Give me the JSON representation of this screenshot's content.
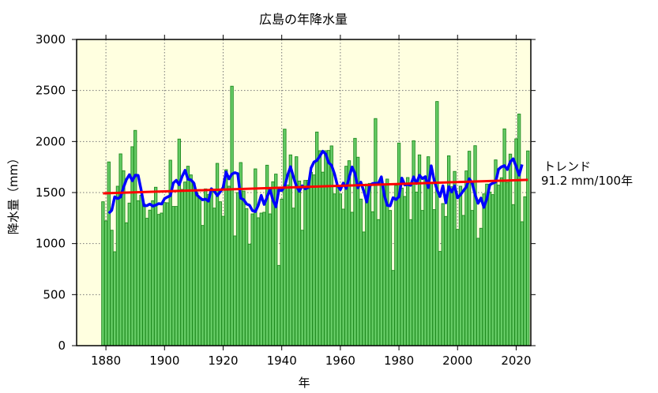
{
  "chart_data": {
    "type": "bar",
    "title": "広島の年降水量",
    "xlabel": "年",
    "ylabel": "降水量（mm）",
    "xlim": [
      1870,
      2025
    ],
    "ylim": [
      0,
      3000
    ],
    "xticks": [
      1880,
      1900,
      1920,
      1940,
      1960,
      1980,
      2000,
      2020
    ],
    "yticks": [
      0,
      500,
      1000,
      1500,
      2000,
      2500,
      3000
    ],
    "grid": true,
    "x_start": 1879,
    "values": [
      1410,
      1222,
      1800,
      1131,
      920,
      1562,
      1879,
      1714,
      1204,
      1397,
      1949,
      2109,
      1420,
      1474,
      1387,
      1248,
      1328,
      1420,
      1552,
      1286,
      1299,
      1402,
      1400,
      1817,
      1364,
      1364,
      2024,
      1531,
      1603,
      1758,
      1673,
      1588,
      1500,
      1450,
      1178,
      1536,
      1480,
      1536,
      1348,
      1786,
      1410,
      1268,
      1724,
      1562,
      2542,
      1075,
      1500,
      1794,
      1515,
      1343,
      995,
      1291,
      1732,
      1253,
      1299,
      1307,
      1768,
      1291,
      1606,
      1681,
      786,
      1436,
      2121,
      1575,
      1869,
      1348,
      1851,
      1613,
      1131,
      1619,
      1620,
      1699,
      1673,
      2093,
      1910,
      1700,
      1910,
      1913,
      1957,
      1487,
      1570,
      1487,
      1338,
      1758,
      1812,
      1307,
      2031,
      1846,
      1436,
      1114,
      1583,
      1590,
      1312,
      2225,
      1235,
      1596,
      1583,
      1632,
      1325,
      737,
      1570,
      1985,
      1544,
      1462,
      1647,
      1235,
      2008,
      1505,
      1869,
      1325,
      1634,
      1851,
      1600,
      1333,
      2392,
      923,
      1392,
      1266,
      1860,
      1557,
      1707,
      1139,
      1562,
      1276,
      1712,
      1905,
      1325,
      1959,
      1052,
      1150,
      1487,
      1583,
      1505,
      1480,
      1820,
      1573,
      1645,
      2124,
      1600,
      1877,
      1382,
      2026,
      2269,
      1214,
      1459,
      1908
    ],
    "moving_average_window": 5,
    "trend": {
      "label": "トレンド",
      "value_label": "91.2 mm/100年",
      "rate_per_100yr": 91.2
    },
    "colors": {
      "background": "#ffffe0",
      "bar_fill": "#66cc66",
      "bar_edge": "#1f8a1f",
      "moving_average": "#0000ff",
      "trend": "#ff0000"
    }
  }
}
